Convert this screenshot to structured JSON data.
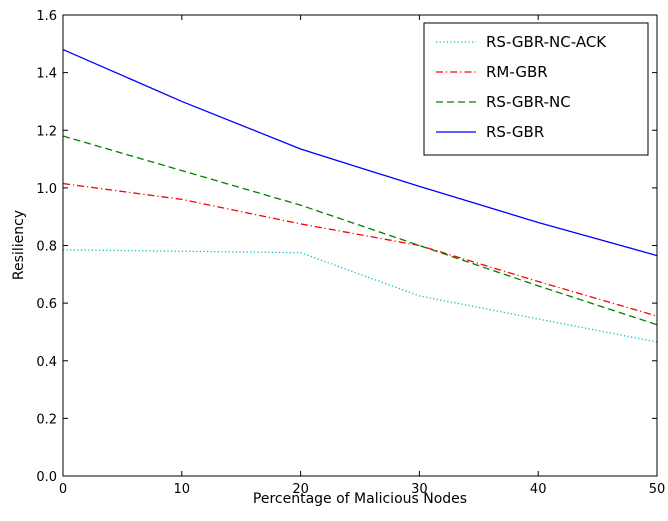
{
  "chart_data": {
    "type": "line",
    "title": "",
    "xlabel": "Percentage of Malicious Nodes",
    "ylabel": "Resiliency",
    "xlim": [
      0,
      50
    ],
    "ylim": [
      0.0,
      1.6
    ],
    "x_ticks": [
      0,
      10,
      20,
      30,
      40,
      50
    ],
    "y_ticks": [
      0.0,
      0.2,
      0.4,
      0.6,
      0.8,
      1.0,
      1.2,
      1.4,
      1.6
    ],
    "x_tick_labels": [
      "0",
      "10",
      "20",
      "30",
      "40",
      "50"
    ],
    "y_tick_labels": [
      "0.0",
      "0.2",
      "0.4",
      "0.6",
      "0.8",
      "1.0",
      "1.2",
      "1.4",
      "1.6"
    ],
    "grid": false,
    "legend_position": "top-right",
    "x": [
      0,
      10,
      20,
      30,
      40,
      50
    ],
    "series": [
      {
        "name": "RS-GBR-NC-ACK",
        "values": [
          0.785,
          0.78,
          0.775,
          0.625,
          0.545,
          0.465
        ],
        "color": "#00bfbf",
        "style": "dotted"
      },
      {
        "name": "RM-GBR",
        "values": [
          1.015,
          0.96,
          0.875,
          0.8,
          0.675,
          0.555
        ],
        "color": "#ff0000",
        "style": "dashdot"
      },
      {
        "name": "RS-GBR-NC",
        "values": [
          1.18,
          1.06,
          0.94,
          0.8,
          0.66,
          0.525
        ],
        "color": "#008000",
        "style": "dashed"
      },
      {
        "name": "RS-GBR",
        "values": [
          1.48,
          1.3,
          1.135,
          1.005,
          0.88,
          0.765
        ],
        "color": "#0000ff",
        "style": "solid"
      }
    ]
  }
}
